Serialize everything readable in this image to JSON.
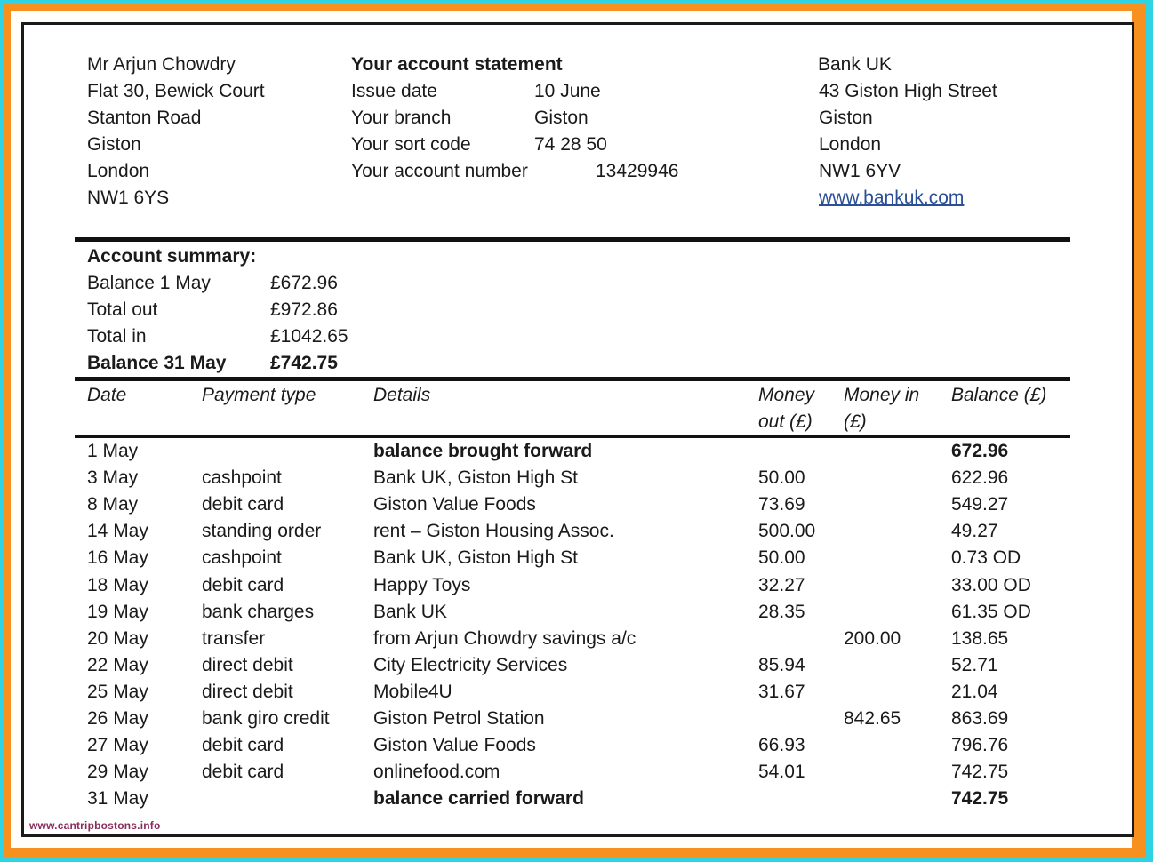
{
  "customer": {
    "lines": [
      "Mr Arjun Chowdry",
      "Flat 30, Bewick Court",
      "Stanton Road",
      "Giston",
      "London",
      "NW1 6YS"
    ]
  },
  "statement": {
    "title": "Your account statement",
    "fields": [
      {
        "label": "Issue date",
        "value": "10 June"
      },
      {
        "label": "Your branch",
        "value": "Giston"
      },
      {
        "label": "Your sort code",
        "value": "74 28 50"
      },
      {
        "label": "Your account number",
        "value": "13429946"
      }
    ]
  },
  "bank": {
    "lines": [
      "Bank UK",
      "43 Giston High Street",
      "Giston",
      "London",
      "NW1 6YV"
    ],
    "website": "www.bankuk.com"
  },
  "summary": {
    "title": "Account summary:",
    "rows": [
      {
        "label": "Balance 1 May",
        "value": "£672.96"
      },
      {
        "label": "Total out",
        "value": "£972.86"
      },
      {
        "label": "Total in",
        "value": "£1042.65"
      },
      {
        "label": "Balance 31 May",
        "value": "£742.75"
      }
    ]
  },
  "table": {
    "headers": {
      "date": "Date",
      "payment_type": "Payment type",
      "details": "Details",
      "money_out_1": "Money",
      "money_out_2": "out (£)",
      "money_in_1": "Money in",
      "money_in_2": "(£)",
      "balance": "Balance (£)"
    },
    "rows": [
      {
        "date": "1 May",
        "type": "",
        "details": "balance brought forward",
        "out": "",
        "in": "",
        "balance": "672.96",
        "bold": true
      },
      {
        "date": "3 May",
        "type": "cashpoint",
        "details": "Bank UK, Giston High St",
        "out": "50.00",
        "in": "",
        "balance": "622.96"
      },
      {
        "date": "8 May",
        "type": "debit card",
        "details": "Giston Value Foods",
        "out": "73.69",
        "in": "",
        "balance": "549.27"
      },
      {
        "date": "14 May",
        "type": "standing order",
        "details": "rent – Giston Housing Assoc.",
        "out": "500.00",
        "in": "",
        "balance": "49.27"
      },
      {
        "date": "16 May",
        "type": "cashpoint",
        "details": "Bank UK, Giston High St",
        "out": "50.00",
        "in": "",
        "balance": "0.73 OD"
      },
      {
        "date": "18 May",
        "type": "debit card",
        "details": "Happy Toys",
        "out": "32.27",
        "in": "",
        "balance": "33.00 OD"
      },
      {
        "date": "19 May",
        "type": "bank charges",
        "details": "Bank UK",
        "out": "28.35",
        "in": "",
        "balance": "61.35 OD"
      },
      {
        "date": "20 May",
        "type": "transfer",
        "details": "from Arjun Chowdry savings a/c",
        "out": "",
        "in": "200.00",
        "balance": "138.65"
      },
      {
        "date": "22 May",
        "type": "direct debit",
        "details": "City Electricity Services",
        "out": "85.94",
        "in": "",
        "balance": "52.71"
      },
      {
        "date": "25 May",
        "type": "direct debit",
        "details": "Mobile4U",
        "out": "31.67",
        "in": "",
        "balance": "21.04"
      },
      {
        "date": "26 May",
        "type": "bank giro credit",
        "details": "Giston Petrol Station",
        "out": "",
        "in": "842.65",
        "balance": "863.69"
      },
      {
        "date": "27 May",
        "type": "debit card",
        "details": "Giston Value Foods",
        "out": "66.93",
        "in": "",
        "balance": "796.76"
      },
      {
        "date": "29 May",
        "type": "debit card",
        "details": "onlinefood.com",
        "out": "54.01",
        "in": "",
        "balance": "742.75"
      },
      {
        "date": "31 May",
        "type": "",
        "details": "balance carried forward",
        "out": "",
        "in": "",
        "balance": "742.75",
        "bold": true
      }
    ]
  },
  "watermark": "www.cantripbostons.info"
}
